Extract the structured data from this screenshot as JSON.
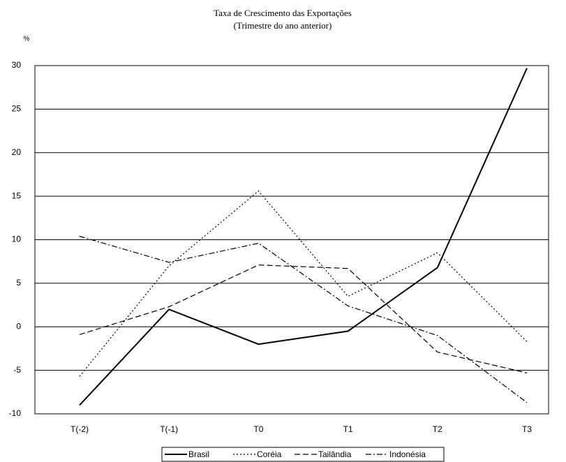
{
  "chart_data": {
    "type": "line",
    "title": "Taxa de  Crescimento  das  Exportações",
    "subtitle": "(Trimestre do  ano anterior)",
    "y_label": "%",
    "categories": [
      "T(-2)",
      "T(-1)",
      "T0",
      "T1",
      "T2",
      "T3"
    ],
    "series": [
      {
        "name": "Brasil",
        "color": "#000000",
        "dash": "solid",
        "values": [
          -9,
          2,
          -2,
          -0.5,
          6.8,
          29.7
        ]
      },
      {
        "name": "Coréia",
        "color": "#000000",
        "dash": "dotted",
        "values": [
          -5.7,
          7,
          15.6,
          3.5,
          8.5,
          -1.7
        ]
      },
      {
        "name": "Tailândia",
        "color": "#000000",
        "dash": "dashed",
        "values": [
          -0.9,
          2.3,
          7.1,
          6.7,
          -2.9,
          -5.3
        ]
      },
      {
        "name": "Indonésia",
        "color": "#000000",
        "dash": "dashdot",
        "values": [
          10.4,
          7.4,
          9.6,
          2.4,
          -1,
          -8.7
        ]
      }
    ],
    "ylim": [
      -10,
      30
    ],
    "yticks": [
      -10,
      -5,
      0,
      5,
      10,
      15,
      20,
      25,
      30
    ],
    "grid": true,
    "legend": "bottom"
  }
}
